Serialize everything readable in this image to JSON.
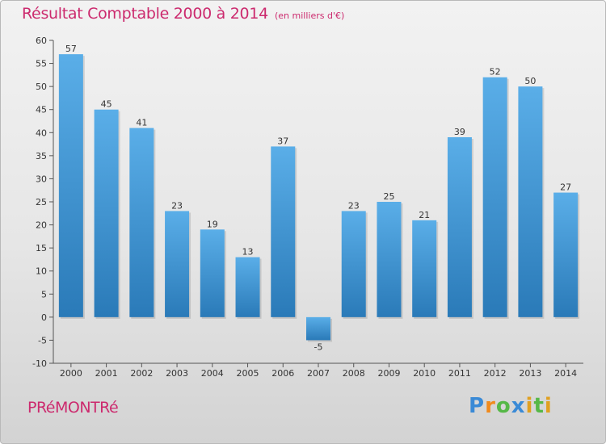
{
  "header": {
    "title": "Résultat Comptable 2000 à 2014",
    "subtitle": "(en milliers d'€)"
  },
  "footer": {
    "commune": "PRéMONTRé",
    "logo_letters": [
      "P",
      "r",
      "o",
      "x",
      "i",
      "t",
      "i"
    ],
    "logo_colors": [
      "#3a8ad6",
      "#f08a1c",
      "#56b847",
      "#3a8ad6",
      "#e0a020",
      "#56b847",
      "#e0a020"
    ]
  },
  "chart_data": {
    "type": "bar",
    "title": "Résultat Comptable 2000 à 2014",
    "unit": "(en milliers d'€)",
    "categories": [
      "2000",
      "2001",
      "2002",
      "2003",
      "2004",
      "2005",
      "2006",
      "2007",
      "2008",
      "2009",
      "2010",
      "2011",
      "2012",
      "2013",
      "2014"
    ],
    "values": [
      57,
      45,
      41,
      23,
      19,
      13,
      37,
      -5,
      23,
      25,
      21,
      39,
      52,
      50,
      27
    ],
    "ylim": [
      -10,
      60
    ],
    "yticks": [
      -10,
      -5,
      0,
      5,
      10,
      15,
      20,
      25,
      30,
      35,
      40,
      45,
      50,
      55,
      60
    ],
    "grid": false,
    "bar_color_light": "#5aaee8",
    "bar_color_dark": "#2a7ab8",
    "xlabel": "",
    "ylabel": ""
  }
}
